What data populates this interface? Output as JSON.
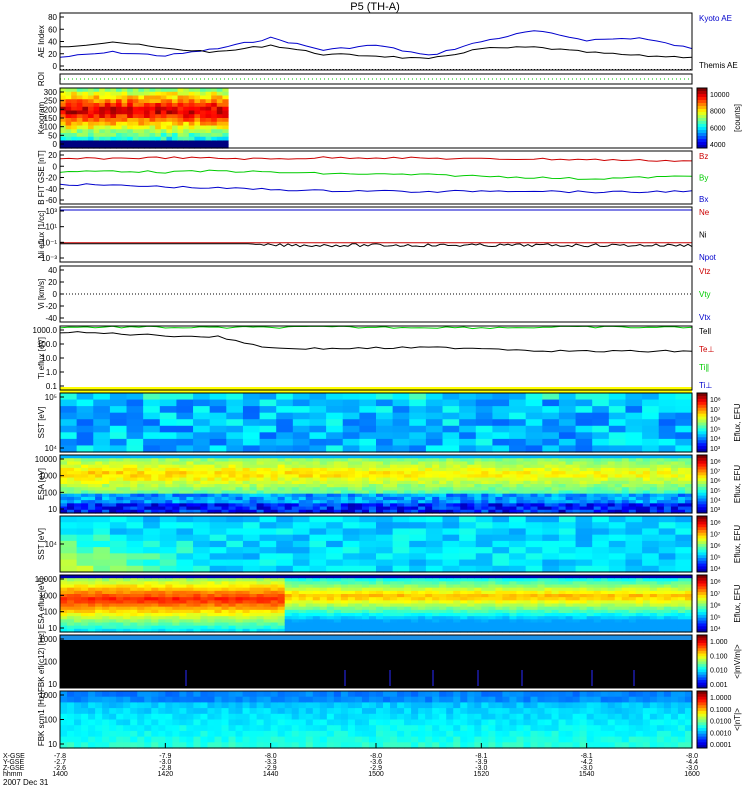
{
  "title": "P5 (TH-A)",
  "footer": {
    "row_labels": [
      "X-GSE",
      "Y-GSE",
      "Z-GSE",
      "hhmm"
    ],
    "date": "2007 Dec 31",
    "columns": [
      {
        "x": "-7.8",
        "y": "-2.7",
        "z": "-2.6",
        "t": "1400"
      },
      {
        "x": "-7.9",
        "y": "-3.0",
        "z": "-2.8",
        "t": "1420"
      },
      {
        "x": "-8.0",
        "y": "-3.3",
        "z": "-2.9",
        "t": "1440"
      },
      {
        "x": "-8.0",
        "y": "-3.6",
        "z": "-2.9",
        "t": "1500"
      },
      {
        "x": "-8.1",
        "y": "-3.9",
        "z": "-3.0",
        "t": "1520"
      },
      {
        "x": "-8.1",
        "y": "-4.2",
        "z": "-3.0",
        "t": "1540"
      },
      {
        "x": "-8.0",
        "y": "-4.4",
        "z": "-3.0",
        "t": "1600"
      }
    ]
  },
  "colors": {
    "red": "#cc0000",
    "green": "#00cc00",
    "blue": "#0000cc",
    "black": "#000000",
    "yellow": "#ffff00"
  },
  "panels": [
    {
      "ylabel": "AE Index",
      "ticks": [
        "80",
        "60",
        "40",
        "20",
        "0"
      ],
      "legend": [
        {
          "text": "Kyoto AE",
          "color": "blue"
        },
        {
          "text": "Themis AE",
          "color": "black"
        }
      ]
    },
    {
      "ylabel": "ROI",
      "ticks": [],
      "legend": []
    },
    {
      "ylabel": "Keogram",
      "ticks": [
        "300",
        "250",
        "200",
        "150",
        "100",
        "50",
        "0"
      ],
      "colorbar": {
        "label": "[counts]",
        "ticks": [
          "10000",
          "8000",
          "6000",
          "4000"
        ]
      }
    },
    {
      "ylabel": "B FIT GSE [nT]",
      "ticks": [
        "20",
        "0",
        "-20",
        "-40",
        "-60"
      ],
      "legend": [
        {
          "text": "Bz",
          "color": "red"
        },
        {
          "text": "By",
          "color": "green"
        },
        {
          "text": "Bx",
          "color": "blue"
        }
      ]
    },
    {
      "ylabel": "Ni eflux [1/cc]",
      "ticks": [
        "10³",
        "10¹",
        "10⁻¹",
        "10⁻³"
      ],
      "legend": [
        {
          "text": "Ne",
          "color": "red"
        },
        {
          "text": "Ni",
          "color": "black"
        },
        {
          "text": "Npot",
          "color": "blue"
        }
      ]
    },
    {
      "ylabel": "Vi [km/s]",
      "ticks": [
        "40",
        "20",
        "0",
        "-20",
        "-40"
      ],
      "legend": [
        {
          "text": "Vtz",
          "color": "red"
        },
        {
          "text": "Vty",
          "color": "green"
        },
        {
          "text": "Vtx",
          "color": "blue"
        }
      ]
    },
    {
      "ylabel": "Ti eflux [eV]",
      "ticks": [
        "1000.0",
        "100.0",
        "10.0",
        "1.0",
        "0.1"
      ],
      "legend": [
        {
          "text": "Tell",
          "color": "black"
        },
        {
          "text": "Te⊥",
          "color": "red"
        },
        {
          "text": "Ti∥",
          "color": "green"
        },
        {
          "text": "Ti⊥",
          "color": "blue"
        }
      ]
    },
    {
      "ylabel": "SST [eV]",
      "ticks": [
        "10⁵",
        "10⁴"
      ],
      "colorbar": {
        "label": "Eflux, EFU",
        "ticks": [
          "10⁸",
          "10⁷",
          "10⁶",
          "10⁵",
          "10⁴",
          "10³"
        ]
      }
    },
    {
      "ylabel": "ESA [eV]",
      "ticks": [
        "10000",
        "1000",
        "100",
        "10"
      ],
      "colorbar": {
        "label": "Eflux, EFU",
        "ticks": [
          "10⁸",
          "10⁷",
          "10⁶",
          "10⁵",
          "10⁴",
          "10³"
        ]
      }
    },
    {
      "ylabel": "SST [eV]",
      "ticks": [
        "10⁴"
      ],
      "colorbar": {
        "label": "Eflux, EFU",
        "ticks": [
          "10⁸",
          "10⁷",
          "10⁶",
          "10⁵",
          "10⁴"
        ]
      }
    },
    {
      "ylabel": "ESA eflux [eV]",
      "ticks": [
        "10000",
        "1000",
        "100",
        "10"
      ],
      "colorbar": {
        "label": "Eflux, EFU",
        "ticks": [
          "10⁸",
          "10⁷",
          "10⁶",
          "10⁵",
          "10⁴"
        ]
      }
    },
    {
      "ylabel": "FBK efi(c12) [Hz]",
      "ticks": [
        "1000",
        "100",
        "10"
      ],
      "colorbar": {
        "label": "<|mV/m|>",
        "ticks": [
          "1.000",
          "0.100",
          "0.010",
          "0.001"
        ]
      }
    },
    {
      "ylabel": "FBK scm1 [Hz]",
      "ticks": [
        "1000",
        "100",
        "10"
      ],
      "colorbar": {
        "label": "<|nT|>",
        "ticks": [
          "1.0000",
          "0.1000",
          "0.0100",
          "0.0010",
          "0.0001"
        ]
      }
    }
  ],
  "chart_data": {
    "type": "line",
    "title": "P5 (TH-A)",
    "xlabel": "hhmm",
    "x_ticks": [
      "1400",
      "1420",
      "1440",
      "1500",
      "1520",
      "1540",
      "1600"
    ],
    "x": [
      1400,
      1410,
      1420,
      1430,
      1440,
      1450,
      1500,
      1510,
      1520,
      1530,
      1540,
      1550,
      1600
    ],
    "series": [
      {
        "name": "Kyoto AE",
        "panel": "AE Index",
        "values": [
          18,
          25,
          20,
          30,
          45,
          28,
          35,
          20,
          40,
          55,
          42,
          45,
          30
        ]
      },
      {
        "name": "Themis AE",
        "panel": "AE Index",
        "values": [
          32,
          40,
          30,
          25,
          35,
          22,
          20,
          15,
          30,
          32,
          25,
          20,
          18
        ]
      },
      {
        "name": "Bz",
        "panel": "B FIT GSE",
        "values": [
          8,
          9,
          10,
          9,
          8,
          10,
          10,
          9,
          8,
          8,
          7,
          6,
          5
        ]
      },
      {
        "name": "By",
        "panel": "B FIT GSE",
        "values": [
          -12,
          -10,
          -12,
          -10,
          -12,
          -14,
          -15,
          -16,
          -18,
          -20,
          -22,
          -20,
          -18
        ]
      },
      {
        "name": "Bx",
        "panel": "B FIT GSE",
        "values": [
          -30,
          -32,
          -34,
          -36,
          -38,
          -40,
          -40,
          -42,
          -40,
          -40,
          -42,
          -42,
          -40
        ]
      },
      {
        "name": "Tell",
        "panel": "Ti",
        "values": [
          2000,
          2100,
          2000,
          1900,
          2000,
          2100,
          2000,
          2000,
          1900,
          2000,
          2100,
          2000,
          2000
        ]
      },
      {
        "name": "Ti",
        "panel": "Ti",
        "values": [
          900,
          700,
          500,
          400,
          60,
          55,
          60,
          65,
          60,
          40,
          35,
          35,
          35
        ]
      }
    ],
    "ylim_ae": [
      0,
      80
    ],
    "ylim_b": [
      -60,
      20
    ]
  }
}
